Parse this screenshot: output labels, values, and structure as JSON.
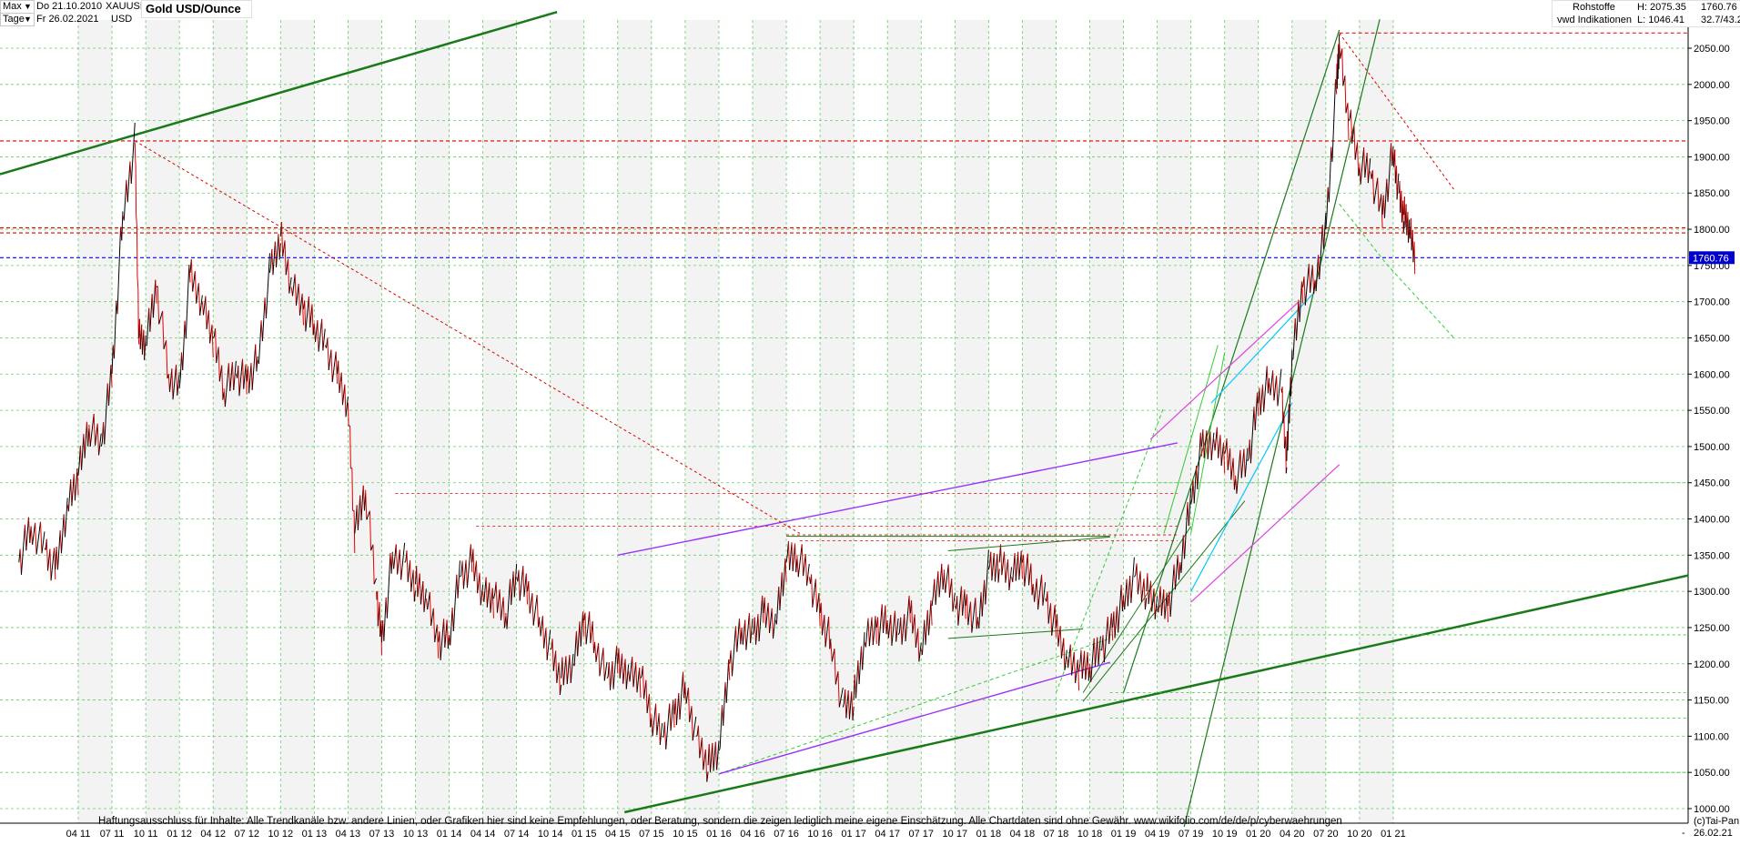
{
  "header": {
    "range_label": "Max",
    "period_label": "Tage",
    "date_from": "Do 21.10.2010",
    "date_to": "Fr 26.02.2021",
    "symbol": "XAUUSD",
    "currency": "USD",
    "title": "Gold USD/Ounce",
    "category": "Rohstoffe",
    "source": "vwd Indikationen",
    "high_label": "H: 2075.35",
    "low_label": "L: 1046.41",
    "last_value": "1760.76",
    "change": "32.7/43.2"
  },
  "footer": {
    "disclaimer": "Haftungsausschluss für Inhalte: Alle Trendkanäle bzw. andere Linien, oder Grafiken hier sind keine Empfehlungen, oder Beratung, sondern die zeigen lediglich meine eigene Einschätzung. Alle Chartdaten sind ohne Gewähr.  www.wikifolio.com/de/de/p/cyberwaehrungen",
    "copyright": "(c)Tai-Pan",
    "dash": "-",
    "end_date": "26.02.21"
  },
  "colors": {
    "up": "#000000",
    "down": "#e00000",
    "grid": "#66cc66",
    "trend_green": "#1a7a1a",
    "trend_purple": "#9b30ff",
    "trend_cyan": "#00c8ff",
    "trend_magenta": "#e040e0",
    "resistance_red": "#e00000",
    "current_blue": "#0000ff"
  },
  "chart_data": {
    "type": "line",
    "title": "Gold USD/Ounce",
    "xlabel": "",
    "ylabel": "",
    "ylim": [
      1000,
      2100
    ],
    "y_ticks": [
      1000,
      1050,
      1100,
      1150,
      1200,
      1250,
      1300,
      1350,
      1400,
      1450,
      1500,
      1550,
      1600,
      1650,
      1700,
      1750,
      1800,
      1850,
      1900,
      1950,
      2000,
      2050
    ],
    "x_ticks": [
      "04 11",
      "07 11",
      "10 11",
      "01 12",
      "04 12",
      "07 12",
      "10 12",
      "01 13",
      "04 13",
      "07 13",
      "10 13",
      "01 14",
      "04 14",
      "07 14",
      "10 14",
      "01 15",
      "04 15",
      "07 15",
      "10 15",
      "01 16",
      "04 16",
      "07 16",
      "10 16",
      "01 17",
      "04 17",
      "07 17",
      "10 17",
      "01 18",
      "04 18",
      "07 18",
      "10 18",
      "01 19",
      "04 19",
      "07 19",
      "10 19",
      "01 20",
      "04 20",
      "07 20",
      "10 20",
      "01 21"
    ],
    "series": [
      {
        "values": [
          [
            2010.81,
            1340
          ],
          [
            2010.9,
            1390
          ],
          [
            2011.0,
            1360
          ],
          [
            2011.08,
            1330
          ],
          [
            2011.17,
            1420
          ],
          [
            2011.25,
            1460
          ],
          [
            2011.33,
            1530
          ],
          [
            2011.42,
            1500
          ],
          [
            2011.5,
            1600
          ],
          [
            2011.58,
            1820
          ],
          [
            2011.67,
            1920
          ],
          [
            2011.7,
            1650
          ],
          [
            2011.75,
            1640
          ],
          [
            2011.83,
            1720
          ],
          [
            2011.92,
            1600
          ],
          [
            2012.0,
            1580
          ],
          [
            2012.08,
            1740
          ],
          [
            2012.17,
            1700
          ],
          [
            2012.25,
            1650
          ],
          [
            2012.33,
            1580
          ],
          [
            2012.42,
            1600
          ],
          [
            2012.5,
            1590
          ],
          [
            2012.58,
            1620
          ],
          [
            2012.67,
            1740
          ],
          [
            2012.75,
            1790
          ],
          [
            2012.83,
            1720
          ],
          [
            2012.92,
            1690
          ],
          [
            2013.0,
            1670
          ],
          [
            2013.08,
            1640
          ],
          [
            2013.17,
            1600
          ],
          [
            2013.25,
            1560
          ],
          [
            2013.3,
            1380
          ],
          [
            2013.38,
            1440
          ],
          [
            2013.46,
            1300
          ],
          [
            2013.5,
            1230
          ],
          [
            2013.58,
            1350
          ],
          [
            2013.67,
            1340
          ],
          [
            2013.75,
            1310
          ],
          [
            2013.83,
            1290
          ],
          [
            2013.92,
            1230
          ],
          [
            2014.0,
            1240
          ],
          [
            2014.08,
            1320
          ],
          [
            2014.17,
            1340
          ],
          [
            2014.25,
            1300
          ],
          [
            2014.33,
            1290
          ],
          [
            2014.42,
            1270
          ],
          [
            2014.5,
            1320
          ],
          [
            2014.58,
            1300
          ],
          [
            2014.67,
            1260
          ],
          [
            2014.75,
            1220
          ],
          [
            2014.83,
            1180
          ],
          [
            2014.92,
            1200
          ],
          [
            2015.0,
            1260
          ],
          [
            2015.08,
            1230
          ],
          [
            2015.17,
            1180
          ],
          [
            2015.25,
            1200
          ],
          [
            2015.33,
            1190
          ],
          [
            2015.42,
            1180
          ],
          [
            2015.5,
            1130
          ],
          [
            2015.58,
            1100
          ],
          [
            2015.67,
            1130
          ],
          [
            2015.75,
            1170
          ],
          [
            2015.83,
            1100
          ],
          [
            2015.92,
            1060
          ],
          [
            2016.0,
            1080
          ],
          [
            2016.08,
            1200
          ],
          [
            2016.17,
            1250
          ],
          [
            2016.25,
            1240
          ],
          [
            2016.33,
            1270
          ],
          [
            2016.42,
            1260
          ],
          [
            2016.5,
            1340
          ],
          [
            2016.58,
            1350
          ],
          [
            2016.67,
            1320
          ],
          [
            2016.75,
            1270
          ],
          [
            2016.83,
            1230
          ],
          [
            2016.92,
            1140
          ],
          [
            2017.0,
            1150
          ],
          [
            2017.08,
            1230
          ],
          [
            2017.17,
            1250
          ],
          [
            2017.25,
            1260
          ],
          [
            2017.33,
            1240
          ],
          [
            2017.42,
            1270
          ],
          [
            2017.5,
            1220
          ],
          [
            2017.58,
            1280
          ],
          [
            2017.67,
            1330
          ],
          [
            2017.75,
            1280
          ],
          [
            2017.83,
            1280
          ],
          [
            2017.92,
            1260
          ],
          [
            2018.0,
            1330
          ],
          [
            2018.08,
            1340
          ],
          [
            2018.17,
            1320
          ],
          [
            2018.25,
            1340
          ],
          [
            2018.33,
            1310
          ],
          [
            2018.42,
            1290
          ],
          [
            2018.5,
            1250
          ],
          [
            2018.58,
            1210
          ],
          [
            2018.67,
            1190
          ],
          [
            2018.75,
            1200
          ],
          [
            2018.83,
            1220
          ],
          [
            2018.92,
            1250
          ],
          [
            2019.0,
            1290
          ],
          [
            2019.08,
            1320
          ],
          [
            2019.17,
            1300
          ],
          [
            2019.25,
            1280
          ],
          [
            2019.33,
            1280
          ],
          [
            2019.42,
            1340
          ],
          [
            2019.5,
            1420
          ],
          [
            2019.58,
            1500
          ],
          [
            2019.67,
            1510
          ],
          [
            2019.75,
            1490
          ],
          [
            2019.83,
            1460
          ],
          [
            2019.92,
            1480
          ],
          [
            2020.0,
            1560
          ],
          [
            2020.08,
            1590
          ],
          [
            2020.17,
            1580
          ],
          [
            2020.21,
            1480
          ],
          [
            2020.25,
            1620
          ],
          [
            2020.33,
            1720
          ],
          [
            2020.42,
            1730
          ],
          [
            2020.5,
            1800
          ],
          [
            2020.58,
            2000
          ],
          [
            2020.6,
            2060
          ],
          [
            2020.67,
            1950
          ],
          [
            2020.75,
            1890
          ],
          [
            2020.83,
            1880
          ],
          [
            2020.92,
            1820
          ],
          [
            2021.0,
            1910
          ],
          [
            2021.04,
            1850
          ],
          [
            2021.08,
            1820
          ],
          [
            2021.12,
            1800
          ],
          [
            2021.16,
            1760.76
          ]
        ]
      }
    ],
    "annotations": {
      "high": 2075.35,
      "low": 1046.41,
      "last": 1760.76
    },
    "grid": true
  }
}
